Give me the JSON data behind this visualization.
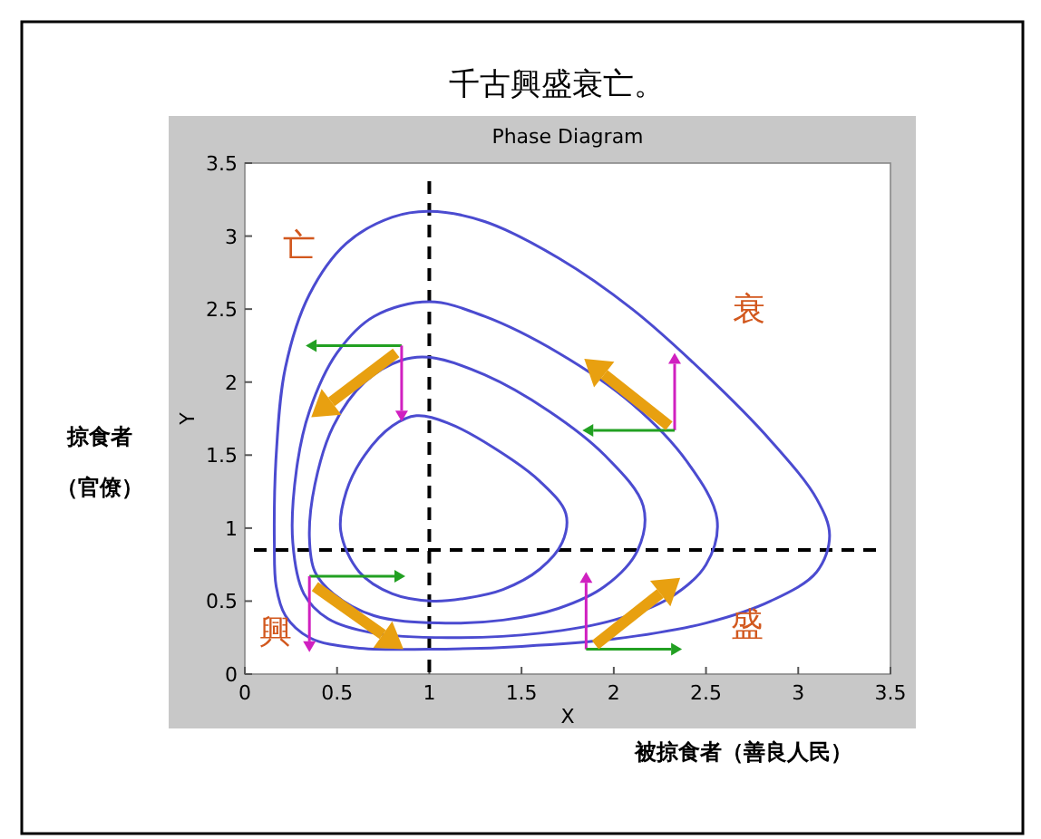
{
  "chart_data": {
    "type": "line",
    "title": "千古興盛衰亡。",
    "subtitle": "Phase Diagram",
    "xlabel": "X",
    "ylabel": "Y",
    "annotations": [
      "掠食者",
      "（官僚）",
      "被掠食者（善良人民）",
      "亡",
      "衰",
      "興",
      "盛"
    ],
    "xlim": [
      0,
      3.5
    ],
    "ylim": [
      0,
      3.5
    ],
    "xticks": [
      0,
      0.5,
      1,
      1.5,
      2,
      2.5,
      3,
      3.5
    ],
    "yticks": [
      0,
      0.5,
      1,
      1.5,
      2,
      2.5,
      3,
      3.5
    ],
    "grid": false,
    "ref_lines": [
      {
        "axis": "x",
        "value": 1,
        "color": "#000000",
        "line_style": "dashed"
      },
      {
        "axis": "y",
        "value": 0.85,
        "color": "#000000",
        "line_style": "dashed"
      }
    ]
  }
}
